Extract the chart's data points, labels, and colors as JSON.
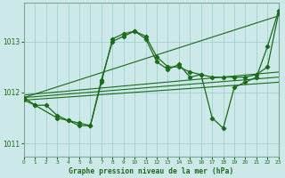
{
  "background_color": "#cce8e8",
  "grid_color": "#99cccc",
  "line_color": "#1a6b1a",
  "title": "Graphe pression niveau de la mer (hPa)",
  "xlim": [
    0,
    23
  ],
  "ylim": [
    1010.75,
    1013.75
  ],
  "yticks": [
    1011,
    1012,
    1013
  ],
  "xticks": [
    0,
    1,
    2,
    3,
    4,
    5,
    6,
    7,
    8,
    9,
    10,
    11,
    12,
    13,
    14,
    15,
    16,
    17,
    18,
    19,
    20,
    21,
    22,
    23
  ],
  "series_zigzag1": {
    "x": [
      0,
      1,
      2,
      3,
      4,
      5,
      6,
      7,
      8,
      9,
      10,
      11,
      12,
      13,
      14,
      15,
      16,
      17,
      18,
      19,
      20,
      21,
      22,
      23
    ],
    "y": [
      1011.9,
      1011.75,
      1011.75,
      1011.55,
      1011.45,
      1011.4,
      1011.35,
      1012.2,
      1013.05,
      1013.15,
      1013.2,
      1013.1,
      1012.7,
      1012.5,
      1012.5,
      1012.4,
      1012.35,
      1012.3,
      1012.3,
      1012.3,
      1012.3,
      1012.35,
      1012.5,
      1013.55
    ]
  },
  "series_zigzag2": {
    "x": [
      0,
      1,
      3,
      4,
      5,
      6,
      7,
      8,
      9,
      10,
      11,
      12,
      13,
      14,
      15,
      16,
      17,
      18,
      19,
      20,
      21,
      22,
      23
    ],
    "y": [
      1011.85,
      1011.75,
      1011.5,
      1011.45,
      1011.35,
      1011.35,
      1012.25,
      1013.0,
      1013.1,
      1013.2,
      1013.05,
      1012.6,
      1012.45,
      1012.55,
      1012.3,
      1012.35,
      1011.5,
      1011.3,
      1012.1,
      1012.2,
      1012.3,
      1012.9,
      1013.6
    ]
  },
  "series_straight1": {
    "x": [
      0,
      23
    ],
    "y": [
      1011.9,
      1013.5
    ]
  },
  "series_straight2": {
    "x": [
      0,
      23
    ],
    "y": [
      1011.85,
      1012.2
    ]
  },
  "series_straight3": {
    "x": [
      0,
      23
    ],
    "y": [
      1011.9,
      1012.3
    ]
  },
  "series_straight4": {
    "x": [
      0,
      23
    ],
    "y": [
      1011.95,
      1012.4
    ]
  }
}
